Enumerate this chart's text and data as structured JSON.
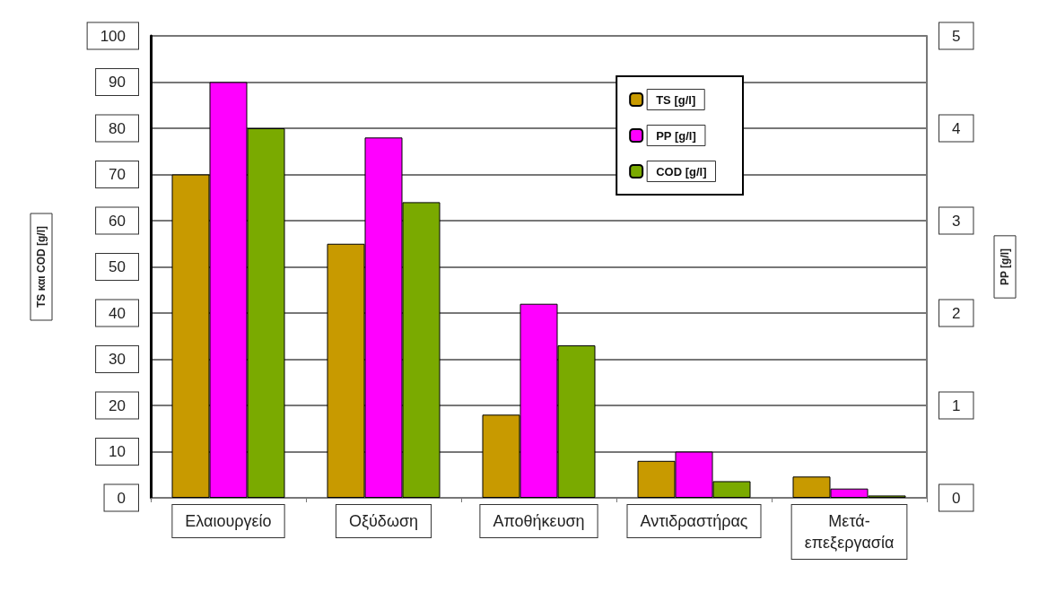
{
  "chart_data": {
    "type": "bar",
    "ylabel": "TS και COD [g/l]",
    "y2label": "PP [g/l]",
    "categories": [
      "Ελαιουργείο",
      "Οξύδωση",
      "Αποθήκευση",
      "Αντιδραστήρας",
      "Μετά-\nεπεξεργασία"
    ],
    "series": [
      {
        "name": "TS [g/l]",
        "color": "#c89a00",
        "values": [
          70,
          55,
          18,
          8,
          4.6
        ]
      },
      {
        "name": "PP [g/l]",
        "color": "#ff00ff",
        "axis": "y2",
        "values": [
          4.5,
          3.9,
          2.1,
          0.5,
          0.1
        ]
      },
      {
        "name": "COD [g/l]",
        "color": "#7aaa00",
        "values": [
          80,
          64,
          33,
          3.6,
          0.5
        ]
      }
    ],
    "ylim": [
      0,
      100
    ],
    "yticks": [
      0,
      10,
      20,
      30,
      40,
      50,
      60,
      70,
      80,
      90,
      100
    ],
    "y2lim": [
      0,
      5
    ],
    "y2ticks": [
      0,
      1,
      2,
      3,
      4,
      5
    ],
    "grid": "y",
    "legend": "top right"
  }
}
